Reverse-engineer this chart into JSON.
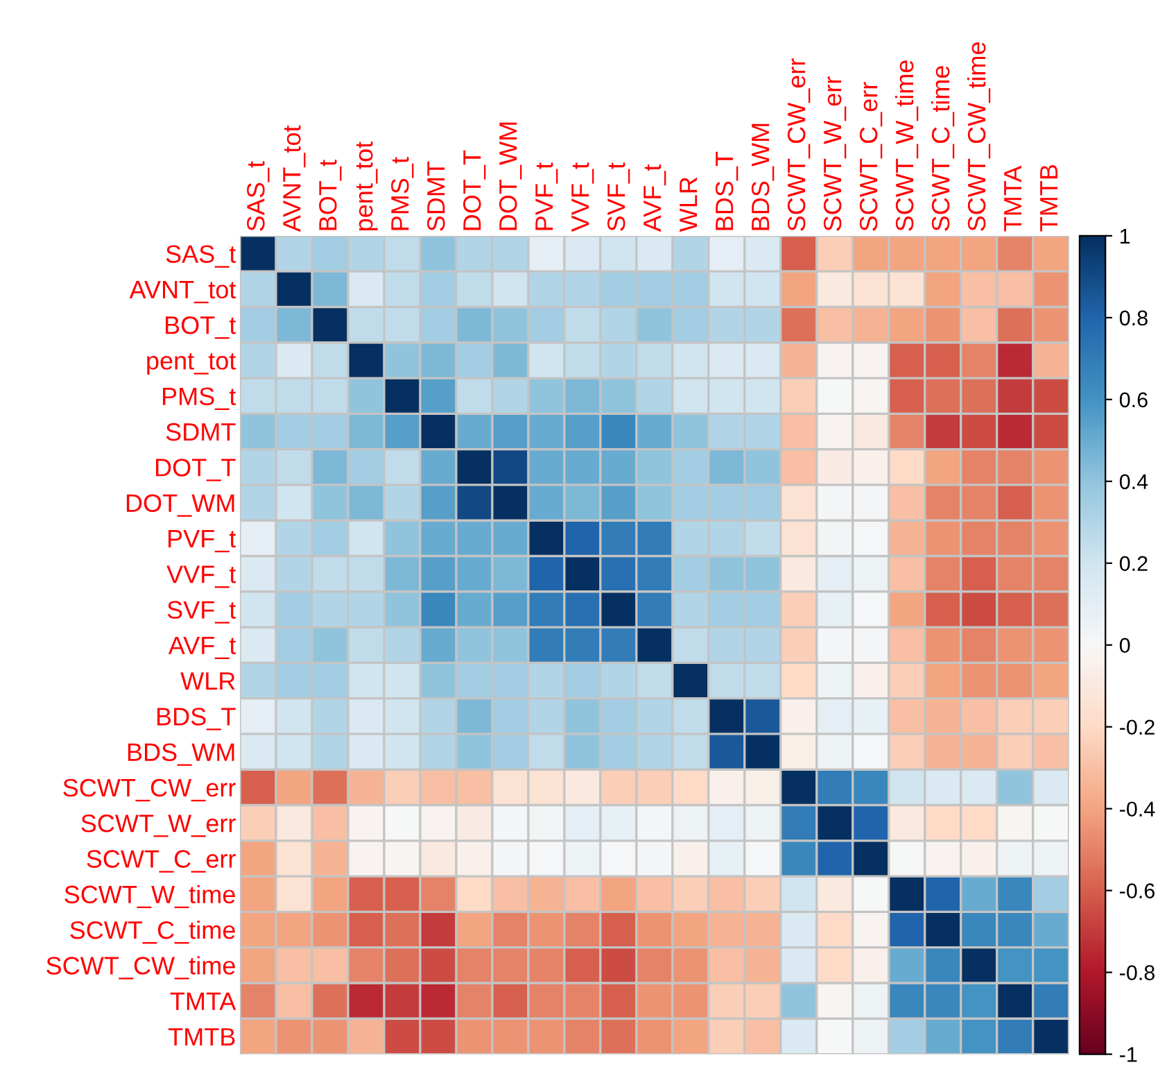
{
  "chart_data": {
    "type": "heatmap",
    "categories": [
      "SAS_t",
      "AVNT_tot",
      "BOT_t",
      "pent_tot",
      "PMS_t",
      "SDMT",
      "DOT_T",
      "DOT_WM",
      "PVF_t",
      "VVF_t",
      "SVF_t",
      "AVF_t",
      "WLR",
      "BDS_T",
      "BDS_WM",
      "SCWT_CW_err",
      "SCWT_W_err",
      "SCWT_C_err",
      "SCWT_W_time",
      "SCWT_C_time",
      "SCWT_CW_time",
      "TMTA",
      "TMTB"
    ],
    "y_categories": [
      "SAS_t",
      "AVNT_tot",
      "BOT_t",
      "pent_tot",
      "PMS_t",
      "SDMT",
      "DOT_T",
      "DOT_WM",
      "PVF_t",
      "VVF_t",
      "SVF_t",
      "AVF_t",
      "WLR",
      "BDS_T",
      "BDS_WM",
      "SCWT_CW_err",
      "SCWT_W_err",
      "SCWT_C_err",
      "SCWT_W_time",
      "SCWT_C_time",
      "SCWT_CW_time",
      "TMTA",
      "TMTB"
    ],
    "cells": [
      [
        1,
        0.3,
        0.35,
        0.3,
        0.25,
        0.4,
        0.3,
        0.3,
        0.1,
        0.15,
        0.2,
        0.15,
        0.3,
        0.1,
        0.15,
        -0.6,
        -0.25,
        -0.4,
        -0.4,
        -0.4,
        -0.4,
        -0.5,
        -0.4
      ],
      [
        0.3,
        1,
        0.45,
        0.15,
        0.25,
        0.35,
        0.25,
        0.2,
        0.3,
        0.3,
        0.35,
        0.35,
        0.35,
        0.2,
        0.2,
        -0.4,
        -0.1,
        -0.15,
        -0.15,
        -0.4,
        -0.3,
        -0.3,
        -0.45
      ],
      [
        0.35,
        0.45,
        1,
        0.25,
        0.25,
        0.35,
        0.45,
        0.4,
        0.35,
        0.25,
        0.3,
        0.4,
        0.35,
        0.3,
        0.3,
        -0.55,
        -0.3,
        -0.35,
        -0.4,
        -0.45,
        -0.3,
        -0.55,
        -0.45
      ],
      [
        0.3,
        0.15,
        0.25,
        1,
        0.4,
        0.45,
        0.35,
        0.45,
        0.2,
        0.25,
        0.3,
        0.25,
        0.2,
        0.15,
        0.15,
        -0.35,
        -0.03,
        -0.03,
        -0.6,
        -0.6,
        -0.5,
        -0.75,
        -0.35
      ],
      [
        0.25,
        0.25,
        0.25,
        0.4,
        1,
        0.55,
        0.25,
        0.3,
        0.4,
        0.45,
        0.4,
        0.3,
        0.2,
        0.2,
        0.2,
        -0.25,
        0,
        -0.02,
        -0.6,
        -0.55,
        -0.55,
        -0.7,
        -0.65
      ],
      [
        0.4,
        0.35,
        0.35,
        0.45,
        0.55,
        1,
        0.5,
        0.55,
        0.5,
        0.55,
        0.65,
        0.5,
        0.4,
        0.3,
        0.3,
        -0.3,
        -0.03,
        -0.1,
        -0.5,
        -0.7,
        -0.65,
        -0.75,
        -0.65
      ],
      [
        0.3,
        0.25,
        0.45,
        0.35,
        0.25,
        0.5,
        1,
        0.9,
        0.5,
        0.5,
        0.5,
        0.4,
        0.35,
        0.45,
        0.4,
        -0.3,
        -0.08,
        -0.05,
        -0.2,
        -0.4,
        -0.5,
        -0.5,
        -0.45
      ],
      [
        0.3,
        0.2,
        0.4,
        0.45,
        0.3,
        0.55,
        0.9,
        1,
        0.5,
        0.45,
        0.55,
        0.4,
        0.35,
        0.35,
        0.35,
        -0.15,
        0.02,
        0.02,
        -0.3,
        -0.5,
        -0.5,
        -0.6,
        -0.45
      ],
      [
        0.1,
        0.3,
        0.35,
        0.2,
        0.4,
        0.5,
        0.5,
        0.5,
        1,
        0.8,
        0.7,
        0.7,
        0.3,
        0.3,
        0.25,
        -0.15,
        0.03,
        0.01,
        -0.35,
        -0.45,
        -0.5,
        -0.5,
        -0.45
      ],
      [
        0.15,
        0.3,
        0.25,
        0.25,
        0.45,
        0.55,
        0.5,
        0.45,
        0.8,
        1,
        0.75,
        0.7,
        0.35,
        0.4,
        0.4,
        -0.1,
        0.1,
        0.05,
        -0.3,
        -0.5,
        -0.6,
        -0.5,
        -0.5
      ],
      [
        0.2,
        0.35,
        0.3,
        0.3,
        0.4,
        0.65,
        0.5,
        0.55,
        0.7,
        0.75,
        1,
        0.7,
        0.3,
        0.35,
        0.35,
        -0.25,
        0.08,
        0.01,
        -0.4,
        -0.6,
        -0.65,
        -0.6,
        -0.55
      ],
      [
        0.15,
        0.35,
        0.4,
        0.25,
        0.3,
        0.5,
        0.4,
        0.4,
        0.7,
        0.7,
        0.7,
        1,
        0.25,
        0.3,
        0.3,
        -0.25,
        0.02,
        0.02,
        -0.3,
        -0.45,
        -0.5,
        -0.45,
        -0.45
      ],
      [
        0.3,
        0.35,
        0.35,
        0.2,
        0.2,
        0.4,
        0.35,
        0.35,
        0.3,
        0.35,
        0.3,
        0.25,
        1,
        0.25,
        0.25,
        -0.2,
        0.05,
        -0.05,
        -0.25,
        -0.4,
        -0.45,
        -0.45,
        -0.4
      ],
      [
        0.1,
        0.2,
        0.3,
        0.15,
        0.2,
        0.3,
        0.45,
        0.35,
        0.3,
        0.4,
        0.35,
        0.3,
        0.25,
        1,
        0.85,
        -0.05,
        0.1,
        0.08,
        -0.3,
        -0.35,
        -0.3,
        -0.25,
        -0.25
      ],
      [
        0.15,
        0.2,
        0.3,
        0.15,
        0.2,
        0.3,
        0.4,
        0.35,
        0.25,
        0.4,
        0.35,
        0.3,
        0.25,
        0.85,
        1,
        -0.06,
        0.05,
        0.01,
        -0.25,
        -0.35,
        -0.35,
        -0.25,
        -0.3
      ],
      [
        -0.6,
        -0.4,
        -0.55,
        -0.35,
        -0.25,
        -0.3,
        -0.3,
        -0.15,
        -0.15,
        -0.1,
        -0.25,
        -0.25,
        -0.2,
        -0.05,
        -0.06,
        1,
        0.7,
        0.65,
        0.2,
        0.15,
        0.15,
        0.4,
        0.15
      ],
      [
        -0.25,
        -0.1,
        -0.3,
        -0.03,
        0,
        -0.03,
        -0.08,
        0.02,
        0.03,
        0.1,
        0.08,
        0.02,
        0.05,
        0.1,
        0.05,
        0.7,
        1,
        0.8,
        -0.1,
        -0.2,
        -0.2,
        -0.02,
        0
      ],
      [
        -0.4,
        -0.15,
        -0.35,
        -0.03,
        -0.02,
        -0.1,
        -0.05,
        0.02,
        0.01,
        0.05,
        0.01,
        0.02,
        -0.05,
        0.08,
        0.01,
        0.65,
        0.8,
        1,
        0,
        -0.03,
        -0.05,
        0.05,
        0.05
      ],
      [
        -0.4,
        -0.15,
        -0.4,
        -0.6,
        -0.6,
        -0.5,
        -0.2,
        -0.3,
        -0.35,
        -0.3,
        -0.4,
        -0.3,
        -0.25,
        -0.3,
        -0.25,
        0.2,
        -0.1,
        0,
        1,
        0.8,
        0.5,
        0.65,
        0.35
      ],
      [
        -0.4,
        -0.4,
        -0.45,
        -0.6,
        -0.55,
        -0.7,
        -0.4,
        -0.5,
        -0.45,
        -0.5,
        -0.6,
        -0.45,
        -0.4,
        -0.35,
        -0.35,
        0.15,
        -0.2,
        -0.03,
        0.8,
        1,
        0.65,
        0.65,
        0.5
      ],
      [
        -0.4,
        -0.3,
        -0.3,
        -0.5,
        -0.55,
        -0.65,
        -0.5,
        -0.5,
        -0.5,
        -0.6,
        -0.65,
        -0.5,
        -0.45,
        -0.3,
        -0.35,
        0.15,
        -0.2,
        -0.05,
        0.5,
        0.65,
        1,
        0.6,
        0.6
      ],
      [
        -0.5,
        -0.3,
        -0.55,
        -0.75,
        -0.7,
        -0.75,
        -0.5,
        -0.6,
        -0.5,
        -0.5,
        -0.6,
        -0.45,
        -0.45,
        -0.25,
        -0.25,
        0.4,
        -0.02,
        0.05,
        0.65,
        0.65,
        0.6,
        1,
        0.7
      ],
      [
        -0.4,
        -0.45,
        -0.45,
        -0.35,
        -0.65,
        -0.65,
        -0.45,
        -0.45,
        -0.45,
        -0.5,
        -0.55,
        -0.45,
        -0.4,
        -0.25,
        -0.3,
        0.15,
        0,
        0.05,
        0.35,
        0.5,
        0.6,
        0.7,
        1
      ]
    ],
    "clim": [
      -1,
      1
    ],
    "cticks": [
      -1,
      -0.8,
      -0.6,
      -0.4,
      -0.2,
      0,
      0.2,
      0.4,
      0.6,
      0.8,
      1
    ]
  }
}
